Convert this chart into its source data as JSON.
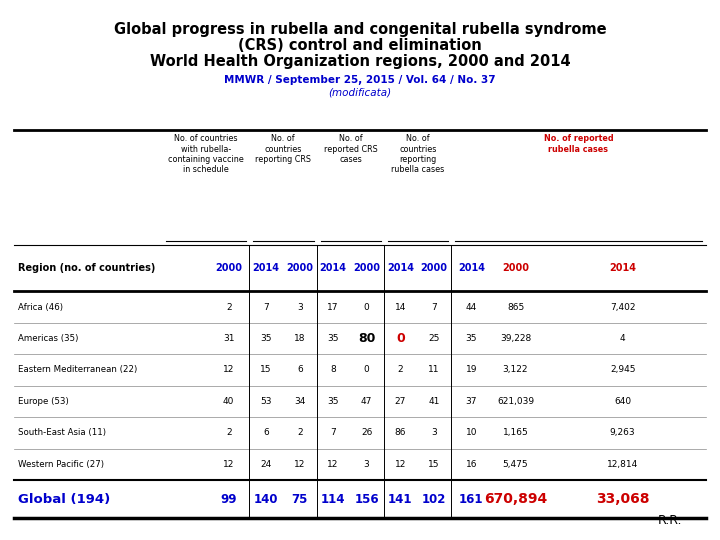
{
  "title_line1": "Global progress in rubella and congenital rubella syndrome",
  "title_line2": "(CRS) control and elimination",
  "title_line3": "World Health Organization regions, 2000 and 2014",
  "subtitle": "MMWR / September 25, 2015 / Vol. 64 / No. 37",
  "subtitle2": "(modificata)",
  "grp_labels": [
    "No. of countries\nwith rubella-\ncontaining vaccine\nin schedule",
    "No. of\ncountries\nreporting CRS",
    "No. of\nreported CRS\ncases",
    "No. of\ncountries\nreporting\nrubella cases",
    "No. of reported\nrubella cases"
  ],
  "regions": [
    "Africa (46)",
    "Americas (35)",
    "Eastern Mediterranean (22)",
    "Europe (53)",
    "South-East Asia (11)",
    "Western Pacific (27)"
  ],
  "table_data": [
    [
      2,
      7,
      3,
      17,
      0,
      14,
      7,
      44,
      "865",
      "7,402"
    ],
    [
      31,
      35,
      18,
      35,
      "80",
      "0",
      25,
      35,
      "39,228",
      "4"
    ],
    [
      12,
      15,
      6,
      8,
      0,
      2,
      11,
      19,
      "3,122",
      "2,945"
    ],
    [
      40,
      53,
      34,
      35,
      47,
      27,
      41,
      37,
      "621,039",
      "640"
    ],
    [
      2,
      6,
      2,
      7,
      26,
      86,
      3,
      10,
      "1,165",
      "9,263"
    ],
    [
      12,
      24,
      12,
      12,
      3,
      12,
      15,
      16,
      "5,475",
      "12,814"
    ]
  ],
  "global_row": [
    "Global (194)",
    "99",
    "140",
    "75",
    "114",
    "156",
    "141",
    "102",
    "161",
    "670,894",
    "33,068"
  ],
  "col_header_red": "#cc0000",
  "col_header_blue": "#0000cc",
  "global_row_blue": "#0000cc",
  "global_row_red": "#cc0000",
  "text_normal": "#000000",
  "bg_color": "#ffffff",
  "footer_text": "R.R."
}
